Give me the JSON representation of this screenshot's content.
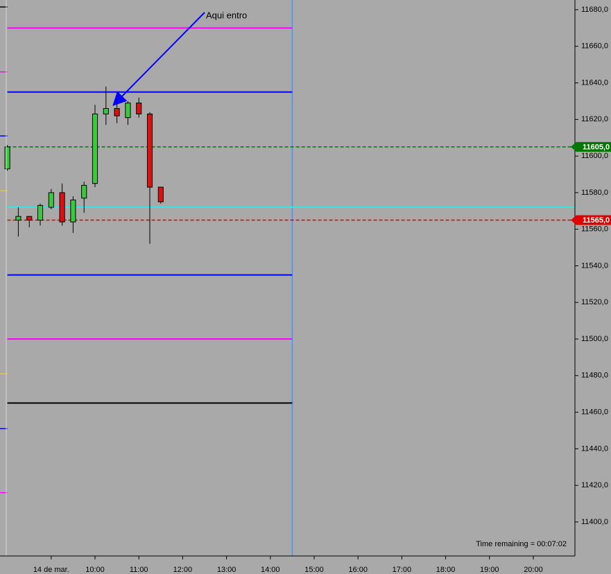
{
  "chart_data": {
    "type": "candlestick",
    "x": [
      8.0,
      8.25,
      8.5,
      8.75,
      9.0,
      9.25,
      9.5,
      9.75,
      10.0,
      10.25,
      10.5,
      10.75,
      11.0,
      11.25,
      11.5
    ],
    "open": [
      11593,
      11565,
      11567,
      11565,
      11572,
      11580,
      11564,
      11577,
      11585,
      11623,
      11626,
      11621,
      11629,
      11623,
      11583
    ],
    "high": [
      11606,
      11572,
      11567,
      11574,
      11582,
      11585,
      11578,
      11586,
      11628,
      11638,
      11630,
      11630,
      11632,
      11624,
      11583
    ],
    "low": [
      11592,
      11556,
      11561,
      11562,
      11571,
      11562,
      11558,
      11569,
      11583,
      11617,
      11618,
      11617,
      11621,
      11552,
      11574
    ],
    "close": [
      11605,
      11567,
      11565,
      11573,
      11580,
      11564,
      11576,
      11584,
      11623,
      11626,
      11622,
      11629,
      11623,
      11583,
      11575
    ],
    "up_color": "#3cc83c",
    "down_color": "#e01010",
    "xlim": [
      7.832,
      20.95
    ],
    "xticks": [
      {
        "value": 9,
        "label": "14 de mar."
      },
      {
        "value": 10,
        "label": "10:00"
      },
      {
        "value": 11,
        "label": "11:00"
      },
      {
        "value": 12,
        "label": "12:00"
      },
      {
        "value": 13,
        "label": "13:00"
      },
      {
        "value": 14,
        "label": "14:00"
      },
      {
        "value": 15,
        "label": "15:00"
      },
      {
        "value": 16,
        "label": "16:00"
      },
      {
        "value": 17,
        "label": "17:00"
      },
      {
        "value": 18,
        "label": "18:00"
      },
      {
        "value": 19,
        "label": "19:00"
      },
      {
        "value": 20,
        "label": "20:00"
      }
    ],
    "ylim": [
      11381.4,
      11685.3
    ],
    "yticks": [
      {
        "value": 11400,
        "label": "11400,0"
      },
      {
        "value": 11420,
        "label": "11420,0"
      },
      {
        "value": 11440,
        "label": "11440,0"
      },
      {
        "value": 11460,
        "label": "11460,0"
      },
      {
        "value": 11480,
        "label": "11480,0"
      },
      {
        "value": 11500,
        "label": "11500,0"
      },
      {
        "value": 11520,
        "label": "11520,0"
      },
      {
        "value": 11540,
        "label": "11540,0"
      },
      {
        "value": 11560,
        "label": "11560,0"
      },
      {
        "value": 11580,
        "label": "11580,0"
      },
      {
        "value": 11600,
        "label": "11600,0"
      },
      {
        "value": 11620,
        "label": "11620,0"
      },
      {
        "value": 11640,
        "label": "11640,0"
      },
      {
        "value": 11660,
        "label": "11660,0"
      },
      {
        "value": 11680,
        "label": "11680,0"
      }
    ],
    "levels": [
      {
        "value": 11670,
        "color": "#ff00ff",
        "dashed": false,
        "full": false
      },
      {
        "value": 11635,
        "color": "#0000ff",
        "dashed": false,
        "full": false
      },
      {
        "value": 11605,
        "color": "#007800",
        "dashed": true,
        "full": true
      },
      {
        "value": 11572,
        "color": "#40e0e0",
        "dashed": false,
        "full": true
      },
      {
        "value": 11565,
        "color": "#e00000",
        "dashed": true,
        "full": true
      },
      {
        "value": 11535,
        "color": "#0000ff",
        "dashed": false,
        "full": false
      },
      {
        "value": 11500,
        "color": "#ff00ff",
        "dashed": false,
        "full": false
      },
      {
        "value": 11465,
        "color": "#000000",
        "dashed": false,
        "full": false
      }
    ],
    "stubs": [
      {
        "value": 11681.5,
        "color": "#000000"
      },
      {
        "value": 11646,
        "color": "#ff00ff"
      },
      {
        "value": 11611,
        "color": "#0000ff"
      },
      {
        "value": 11581,
        "color": "#e8d000"
      },
      {
        "value": 11481,
        "color": "#e8d000"
      },
      {
        "value": 11451,
        "color": "#0000ff"
      },
      {
        "value": 11416,
        "color": "#ff00ff"
      }
    ],
    "price_tags": [
      {
        "value": 11605,
        "label": "11605,0",
        "color": "#007800"
      },
      {
        "value": 11565,
        "label": "11565,0",
        "color": "#e00000"
      }
    ],
    "vline": 14.5,
    "annotation": "Aqui entro",
    "footer": "Time remaining = 00:07:02"
  }
}
